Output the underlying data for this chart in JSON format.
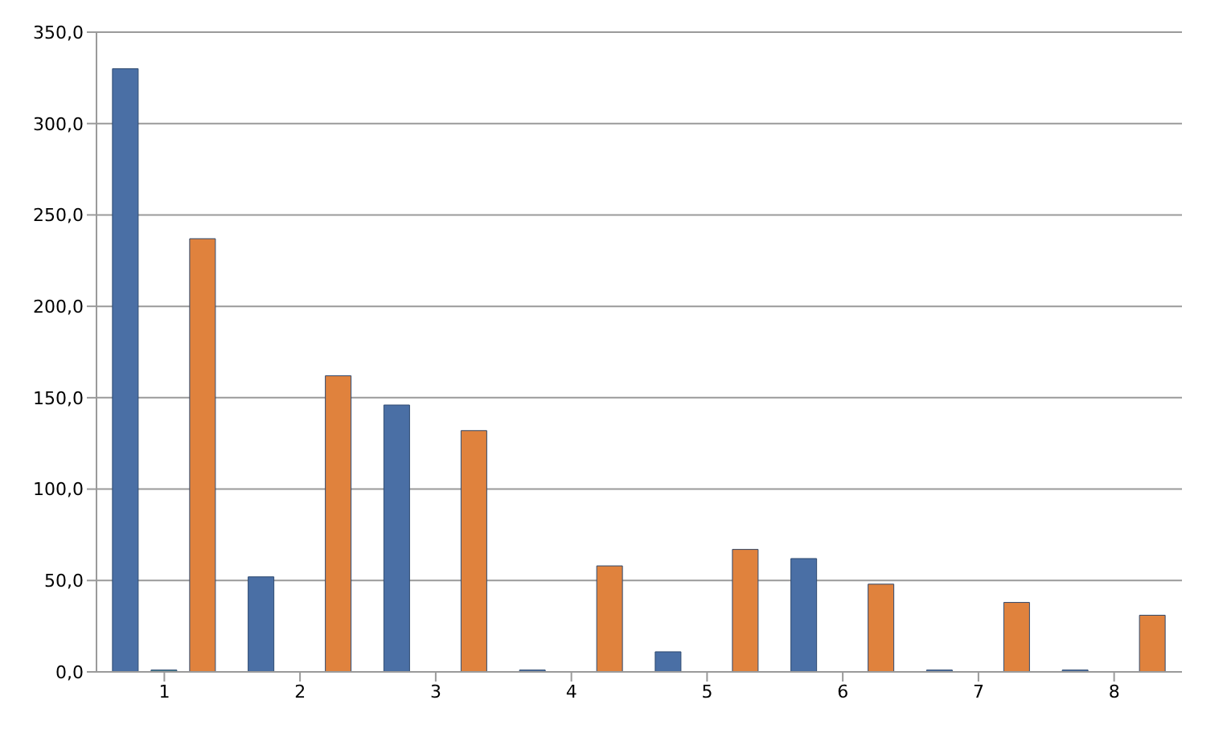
{
  "chart_data": {
    "type": "bar",
    "categories": [
      "1",
      "2",
      "3",
      "4",
      "5",
      "6",
      "7",
      "8"
    ],
    "series": [
      {
        "color": "#4a6fa5",
        "values": [
          330,
          52,
          146,
          1,
          11,
          62,
          1,
          1
        ]
      },
      {
        "color": "#3f7f8f",
        "values": [
          1,
          null,
          null,
          null,
          null,
          null,
          null,
          null
        ]
      },
      {
        "color": "#e0823d",
        "values": [
          237,
          162,
          132,
          58,
          67,
          48,
          38,
          31
        ]
      }
    ],
    "ylim": [
      0,
      350
    ],
    "yticks": [
      {
        "value": 0,
        "label": "0,0"
      },
      {
        "value": 50,
        "label": "50,0"
      },
      {
        "value": 100,
        "label": "100,0"
      },
      {
        "value": 150,
        "label": "150,0"
      },
      {
        "value": 200,
        "label": "200,0"
      },
      {
        "value": 250,
        "label": "250,0"
      },
      {
        "value": 300,
        "label": "300,0"
      },
      {
        "value": 350,
        "label": "350,0"
      }
    ],
    "grid": "y",
    "legend": false
  }
}
